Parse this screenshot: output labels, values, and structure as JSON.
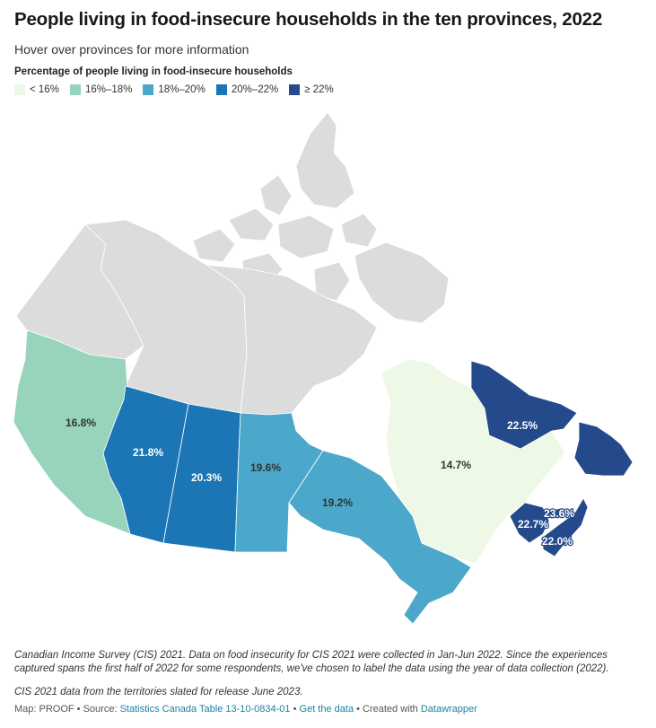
{
  "title": "People living in food-insecure households in the ten provinces, 2022",
  "subtitle": "Hover over provinces for more information",
  "legend": {
    "title": "Percentage of people living in food-insecure households",
    "items": [
      {
        "label": "< 16%",
        "color": "#eef8e6"
      },
      {
        "label": "16%–18%",
        "color": "#97d4bb"
      },
      {
        "label": "18%–20%",
        "color": "#4ba8cb"
      },
      {
        "label": "20%–22%",
        "color": "#1c76b5"
      },
      {
        "label": "≥ 22%",
        "color": "#244a8c"
      }
    ]
  },
  "colors": {
    "territory": "#dcdcdc",
    "border": "#ffffff"
  },
  "provinces": [
    {
      "name": "British Columbia",
      "value": "16.8%",
      "color": "#97d4bb"
    },
    {
      "name": "Alberta",
      "value": "21.8%",
      "color": "#1c76b5"
    },
    {
      "name": "Saskatchewan",
      "value": "20.3%",
      "color": "#1c76b5"
    },
    {
      "name": "Manitoba",
      "value": "19.6%",
      "color": "#4ba8cb"
    },
    {
      "name": "Ontario",
      "value": "19.2%",
      "color": "#4ba8cb"
    },
    {
      "name": "Quebec",
      "value": "14.7%",
      "color": "#eef8e6"
    },
    {
      "name": "Newfoundland and Labrador",
      "value": "22.5%",
      "color": "#244a8c"
    },
    {
      "name": "New Brunswick",
      "value": "22.7%",
      "color": "#244a8c"
    },
    {
      "name": "Prince Edward Island",
      "value": "23.6%",
      "color": "#244a8c"
    },
    {
      "name": "Nova Scotia",
      "value": "22.0%",
      "color": "#244a8c"
    }
  ],
  "notes": {
    "note1": "Canadian Income Survey (CIS) 2021. Data on food insecurity for CIS 2021 were collected in Jan-Jun 2022. Since the experiences captured spans the first half of 2022 for some respondents, we've chosen to label the data using the year of data collection (2022).",
    "note2": "CIS 2021 data from the territories slated for release June 2023."
  },
  "byline": {
    "prefix": "Map: PROOF • Source: ",
    "source_link": "Statistics Canada Table 13-10-0834-01",
    "sep1": " • ",
    "data_link": "Get the data",
    "sep2": " • Created with ",
    "tool_link": "Datawrapper"
  }
}
